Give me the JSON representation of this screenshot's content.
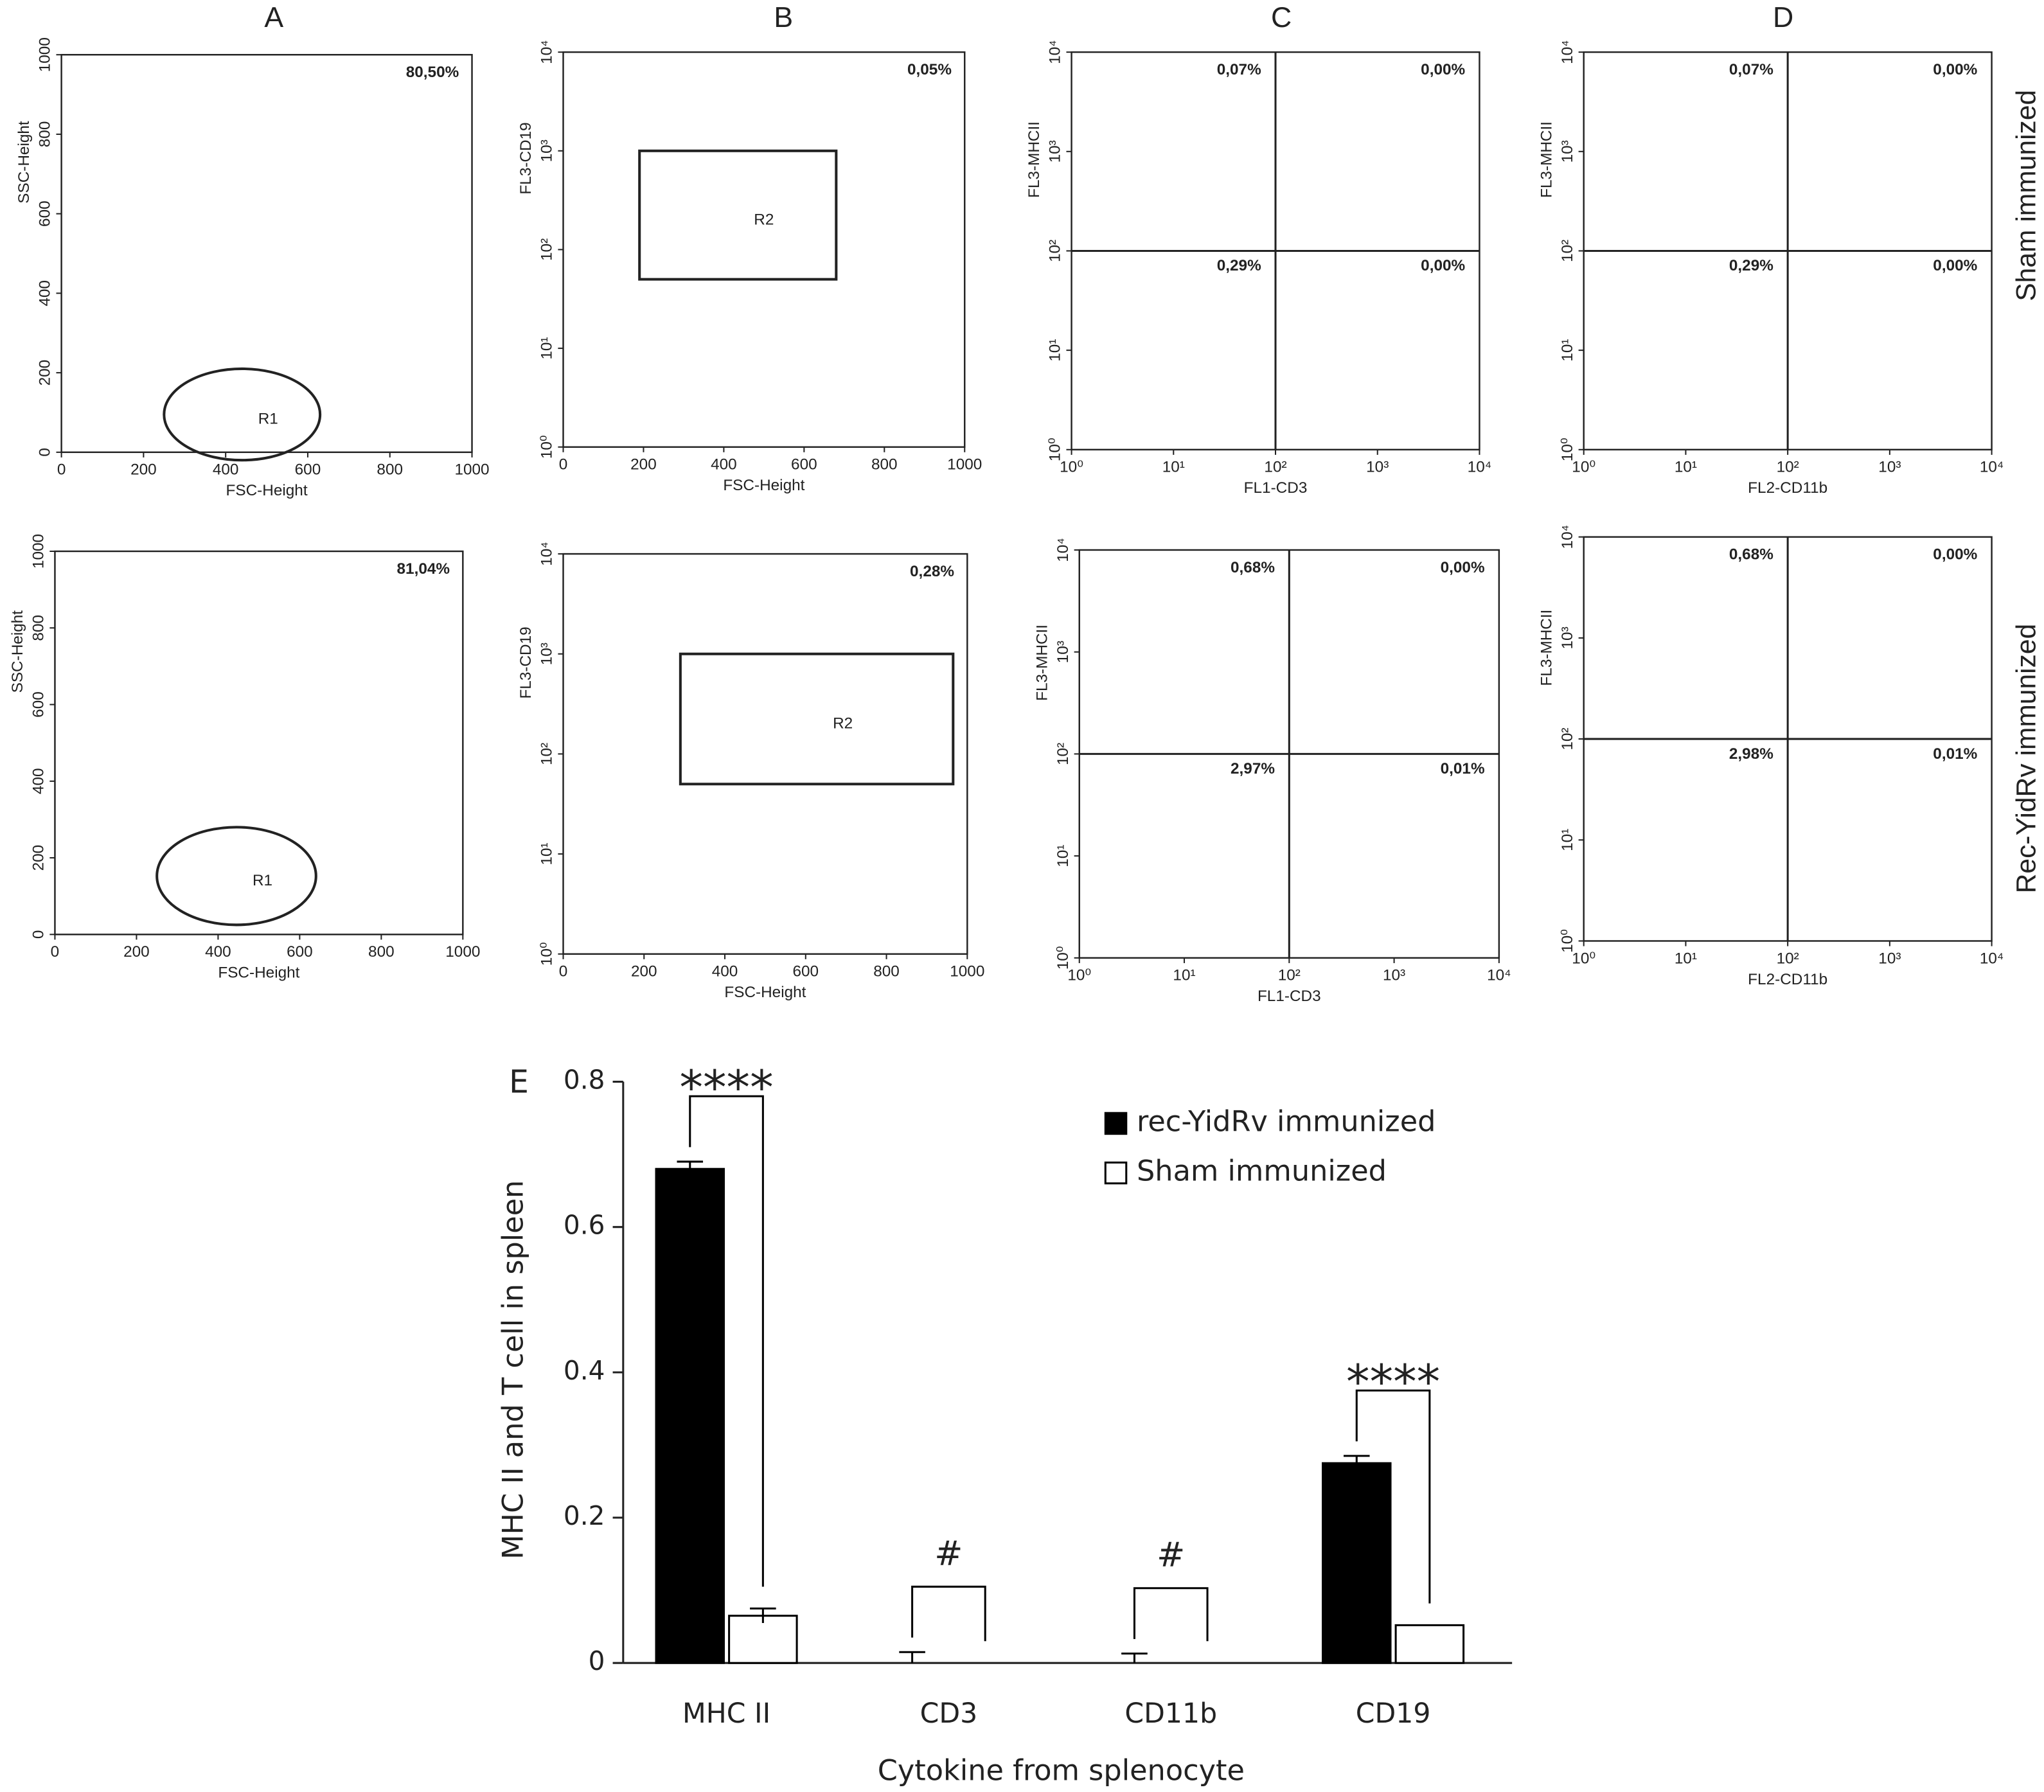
{
  "figure": {
    "column_labels": [
      "A",
      "B",
      "C",
      "D"
    ],
    "row_labels": [
      "Sham immunized",
      "Rec-YidRv immunized"
    ]
  },
  "chart_data": [
    {
      "type": "scatter",
      "xlabel": "FSC-Height",
      "ylabel": "SSC-Height",
      "xlim": [
        0,
        1000
      ],
      "ylim": [
        0,
        1000
      ],
      "xticks": [
        0,
        200,
        400,
        600,
        800,
        1000
      ],
      "yticks": [
        0,
        200,
        400,
        600,
        800,
        1000
      ],
      "log_x": false,
      "log_y": false,
      "annotations": [
        "80,50%"
      ],
      "gate": {
        "label": "R1",
        "shape": "ellipse",
        "x": [
          250,
          630
        ],
        "y": [
          -20,
          210
        ]
      }
    },
    {
      "type": "scatter",
      "xlabel": "FSC-Height",
      "ylabel": "FL3-CD19",
      "xlim": [
        0,
        1000
      ],
      "ylim": [
        1,
        10000
      ],
      "xticks": [
        0,
        200,
        400,
        600,
        800,
        1000
      ],
      "yticks": [
        {
          "value": 1,
          "label": "10⁰"
        },
        {
          "value": 10,
          "label": "10¹"
        },
        {
          "value": 100,
          "label": "10²"
        },
        {
          "value": 1000,
          "label": "10³"
        },
        {
          "value": 10000,
          "label": "10⁴"
        }
      ],
      "log_x": false,
      "log_y": true,
      "annotations": [
        "0,05%"
      ],
      "gate": {
        "label": "R2",
        "shape": "rect",
        "x": [
          190,
          680
        ],
        "y": [
          50,
          1000
        ]
      }
    },
    {
      "type": "scatter",
      "xlabel": "FL1-CD3",
      "ylabel": "FL3-MHCII",
      "xlim": [
        1,
        10000
      ],
      "ylim": [
        1,
        10000
      ],
      "xticks": [
        {
          "value": 1,
          "label": "10⁰"
        },
        {
          "value": 10,
          "label": "10¹"
        },
        {
          "value": 100,
          "label": "10²"
        },
        {
          "value": 1000,
          "label": "10³"
        },
        {
          "value": 10000,
          "label": "10⁴"
        }
      ],
      "yticks": [
        {
          "value": 1,
          "label": "10⁰"
        },
        {
          "value": 10,
          "label": "10¹"
        },
        {
          "value": 100,
          "label": "10²"
        },
        {
          "value": 1000,
          "label": "10³"
        },
        {
          "value": 10000,
          "label": "10⁴"
        }
      ],
      "log_x": true,
      "log_y": true,
      "quadrant": {
        "x": 100,
        "y": 100,
        "labels": [
          "0,07%",
          "0,00%",
          "0,29%",
          "0,00%"
        ]
      }
    },
    {
      "type": "scatter",
      "xlabel": "FL2-CD11b",
      "ylabel": "FL3-MHCII",
      "xlim": [
        1,
        10000
      ],
      "ylim": [
        1,
        10000
      ],
      "xticks": [
        {
          "value": 1,
          "label": "10⁰"
        },
        {
          "value": 10,
          "label": "10¹"
        },
        {
          "value": 100,
          "label": "10²"
        },
        {
          "value": 1000,
          "label": "10³"
        },
        {
          "value": 10000,
          "label": "10⁴"
        }
      ],
      "yticks": [
        {
          "value": 1,
          "label": "10⁰"
        },
        {
          "value": 10,
          "label": "10¹"
        },
        {
          "value": 100,
          "label": "10²"
        },
        {
          "value": 1000,
          "label": "10³"
        },
        {
          "value": 10000,
          "label": "10⁴"
        }
      ],
      "log_x": true,
      "log_y": true,
      "quadrant": {
        "x": 100,
        "y": 100,
        "labels": [
          "0,07%",
          "0,00%",
          "0,29%",
          "0,00%"
        ]
      }
    },
    {
      "type": "scatter",
      "xlabel": "FSC-Height",
      "ylabel": "SSC-Height",
      "xlim": [
        0,
        1000
      ],
      "ylim": [
        0,
        1000
      ],
      "xticks": [
        0,
        200,
        400,
        600,
        800,
        1000
      ],
      "yticks": [
        0,
        200,
        400,
        600,
        800,
        1000
      ],
      "log_x": false,
      "log_y": false,
      "annotations": [
        "81,04%"
      ],
      "gate": {
        "label": "R1",
        "shape": "ellipse",
        "x": [
          250,
          640
        ],
        "y": [
          25,
          280
        ]
      }
    },
    {
      "type": "scatter",
      "xlabel": "FSC-Height",
      "ylabel": "FL3-CD19",
      "xlim": [
        0,
        1000
      ],
      "ylim": [
        1,
        10000
      ],
      "xticks": [
        0,
        200,
        400,
        600,
        800,
        1000
      ],
      "yticks": [
        {
          "value": 1,
          "label": "10⁰"
        },
        {
          "value": 10,
          "label": "10¹"
        },
        {
          "value": 100,
          "label": "10²"
        },
        {
          "value": 1000,
          "label": "10³"
        },
        {
          "value": 10000,
          "label": "10⁴"
        }
      ],
      "log_x": false,
      "log_y": true,
      "annotations": [
        "0,28%"
      ],
      "gate": {
        "label": "R2",
        "shape": "rect",
        "x": [
          290,
          965
        ],
        "y": [
          50,
          1000
        ]
      }
    },
    {
      "type": "scatter",
      "xlabel": "FL1-CD3",
      "ylabel": "FL3-MHCII",
      "xlim": [
        1,
        10000
      ],
      "ylim": [
        1,
        10000
      ],
      "xticks": [
        {
          "value": 1,
          "label": "10⁰"
        },
        {
          "value": 10,
          "label": "10¹"
        },
        {
          "value": 100,
          "label": "10²"
        },
        {
          "value": 1000,
          "label": "10³"
        },
        {
          "value": 10000,
          "label": "10⁴"
        }
      ],
      "yticks": [
        {
          "value": 1,
          "label": "10⁰"
        },
        {
          "value": 10,
          "label": "10¹"
        },
        {
          "value": 100,
          "label": "10²"
        },
        {
          "value": 1000,
          "label": "10³"
        },
        {
          "value": 10000,
          "label": "10⁴"
        }
      ],
      "log_x": true,
      "log_y": true,
      "quadrant": {
        "x": 100,
        "y": 100,
        "labels": [
          "0,68%",
          "0,00%",
          "2,97%",
          "0,01%"
        ]
      }
    },
    {
      "type": "scatter",
      "xlabel": "FL2-CD11b",
      "ylabel": "FL3-MHCII",
      "xlim": [
        1,
        10000
      ],
      "ylim": [
        1,
        10000
      ],
      "xticks": [
        {
          "value": 1,
          "label": "10⁰"
        },
        {
          "value": 10,
          "label": "10¹"
        },
        {
          "value": 100,
          "label": "10²"
        },
        {
          "value": 1000,
          "label": "10³"
        },
        {
          "value": 10000,
          "label": "10⁴"
        }
      ],
      "yticks": [
        {
          "value": 1,
          "label": "10⁰"
        },
        {
          "value": 10,
          "label": "10¹"
        },
        {
          "value": 100,
          "label": "10²"
        },
        {
          "value": 1000,
          "label": "10³"
        },
        {
          "value": 10000,
          "label": "10⁴"
        }
      ],
      "log_x": true,
      "log_y": true,
      "quadrant": {
        "x": 100,
        "y": 100,
        "labels": [
          "0,68%",
          "0,00%",
          "2,98%",
          "0,01%"
        ]
      }
    },
    {
      "type": "bar",
      "panel_label": "E",
      "xlabel": "Cytokine from splenocyte",
      "ylabel": "MHC II and T cell in spleen",
      "categories": [
        "MHC II",
        "CD3",
        "CD11b",
        "CD19"
      ],
      "series": [
        {
          "name": "rec-YidRv immunized",
          "color": "#000000",
          "values": [
            0.68,
            0,
            0,
            0.275
          ],
          "errors": [
            0.01,
            0.015,
            0.013,
            0.01
          ]
        },
        {
          "name": "Sham immunized",
          "color": "#ffffff",
          "values": [
            0.065,
            0,
            0,
            0.052
          ],
          "errors": [
            0.01,
            0,
            0,
            0
          ]
        }
      ],
      "ylim": [
        0,
        0.8
      ],
      "yticks": [
        0,
        0.2,
        0.4,
        0.6,
        0.8
      ],
      "legend": "upper right",
      "significance": [
        "****",
        "#",
        "#",
        "****"
      ]
    }
  ]
}
